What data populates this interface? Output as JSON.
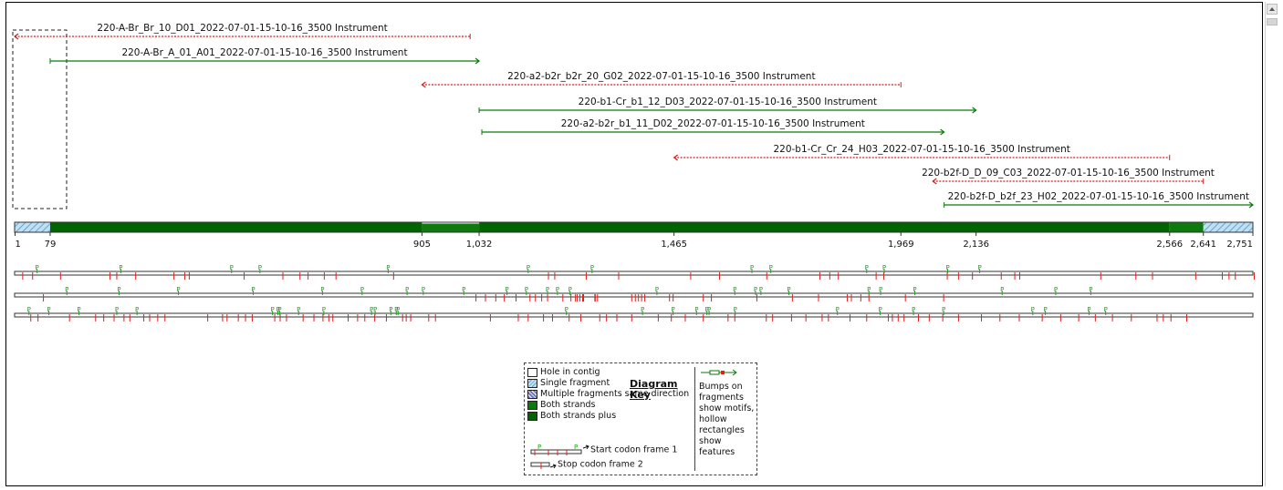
{
  "fragments": [
    {
      "label": "220-A-Br_Br_10_D01_2022-07-01-15-10-16_3500 Instrument",
      "start": 0,
      "end": 1012,
      "direction": "reverse",
      "color": "#d42020",
      "style": "dashed"
    },
    {
      "label": "220-A-Br_A_01_A01_2022-07-01-15-10-16_3500 Instrument",
      "start": 79,
      "end": 1032,
      "direction": "forward",
      "color": "#0a7a0a",
      "style": "solid"
    },
    {
      "label": "220-a2-b2r_b2r_20_G02_2022-07-01-15-10-16_3500 Instrument",
      "start": 905,
      "end": 1969,
      "direction": "reverse",
      "color": "#d42020",
      "style": "dashed"
    },
    {
      "label": "220-b1-Cr_b1_12_D03_2022-07-01-15-10-16_3500 Instrument",
      "start": 1032,
      "end": 2136,
      "direction": "forward",
      "color": "#0a7a0a",
      "style": "solid"
    },
    {
      "label": "220-a2-b2r_b1_11_D02_2022-07-01-15-10-16_3500 Instrument",
      "start": 1038,
      "end": 2065,
      "direction": "forward",
      "color": "#0a7a0a",
      "style": "solid"
    },
    {
      "label": "220-b1-Cr_Cr_24_H03_2022-07-01-15-10-16_3500 Instrument",
      "start": 1465,
      "end": 2566,
      "direction": "reverse",
      "color": "#d42020",
      "style": "dashed"
    },
    {
      "label": "220-b2f-D_D_09_C03_2022-07-01-15-10-16_3500 Instrument",
      "start": 2040,
      "end": 2641,
      "direction": "reverse",
      "color": "#d42020",
      "style": "dashed"
    },
    {
      "label": "220-b2f-D_b2f_23_H02_2022-07-01-15-10-16_3500 Instrument",
      "start": 2065,
      "end": 2751,
      "direction": "forward",
      "color": "#0a7a0a",
      "style": "solid"
    }
  ],
  "contig": {
    "length": 2751,
    "segments": [
      {
        "type": "single",
        "start": 0,
        "end": 79
      },
      {
        "type": "both_plus",
        "start": 79,
        "end": 905
      },
      {
        "type": "both",
        "start": 905,
        "end": 1032
      },
      {
        "type": "both_plus",
        "start": 1032,
        "end": 2566
      },
      {
        "type": "both",
        "start": 2566,
        "end": 2641
      },
      {
        "type": "single",
        "start": 2641,
        "end": 2751
      }
    ]
  },
  "ticks": [
    "1",
    "79",
    "905",
    "1,032",
    "1,465",
    "1,969",
    "2,136",
    "2,566",
    "2,641",
    "2,751"
  ],
  "frames": [
    {
      "starts": [
        50,
        236,
        482,
        545,
        830,
        1141,
        1283,
        1638,
        1680,
        1893,
        1932,
        2073,
        2144
      ],
      "stops": [
        18,
        40,
        102,
        212,
        227,
        269,
        354,
        378,
        388,
        510,
        596,
        634,
        652,
        688,
        714,
        842,
        1186,
        1200,
        1270,
        1342,
        1502,
        1566,
        1671,
        1789,
        1811,
        1830,
        1914,
        1931,
        2072,
        2097,
        2128,
        2192,
        2222,
        2233,
        2413,
        2491,
        2528,
        2624,
        2683,
        2698,
        2712,
        2754
      ]
    },
    {
      "starts": [
        116,
        232,
        364,
        530,
        684,
        772,
        872,
        908,
        998,
        1094,
        1137,
        1184,
        1206,
        1234,
        1427,
        1600,
        1646,
        1658,
        1720,
        1898,
        1924,
        2000,
        2194,
        2313,
        2391
      ],
      "stops": [
        64,
        1025,
        1046,
        1069,
        1088,
        1114,
        1145,
        1157,
        1171,
        1184,
        1218,
        1236,
        1246,
        1264,
        1290,
        1530,
        1548,
        1649,
        1728,
        1786,
        1850,
        1859,
        1880,
        1898,
        1979,
        2064
      ],
      "stop_groups": [
        [
          1250,
          1256,
          1262
        ],
        [
          1289,
          1295
        ],
        [
          1371,
          1379,
          1386,
          1393,
          1400
        ],
        [
          1455,
          1463
        ]
      ]
    },
    {
      "starts": [
        32,
        76,
        143,
        227,
        272,
        573,
        585,
        589,
        631,
        687,
        793,
        801,
        836,
        848,
        852,
        1226,
        1395,
        1463,
        1515,
        1538,
        1543,
        1601,
        1828,
        1923,
        1997,
        2064,
        2262,
        2290,
        2387,
        2424
      ],
      "stops": [
        36,
        52,
        122,
        180,
        198,
        221,
        243,
        256,
        287,
        300,
        318,
        334,
        429,
        462,
        472,
        497,
        513,
        528,
        578,
        590,
        604,
        641,
        665,
        685,
        698,
        707,
        741,
        762,
        778,
        800,
        826,
        862,
        870,
        880,
        920,
        935,
        1057,
        1119,
        1141,
        1175,
        1195,
        1232,
        1258,
        1300,
        1315,
        1338,
        1371,
        1430,
        1459,
        1490,
        1530,
        1585,
        1600,
        1670,
        1684,
        1726,
        1758,
        1794,
        1808,
        1856,
        1893,
        1941,
        1950,
        1963,
        1976,
        2008,
        2032,
        2062,
        2097,
        2148,
        2189,
        2232,
        2283,
        2324,
        2364,
        2401,
        2439,
        2481,
        2538,
        2552,
        2569,
        2604
      ]
    }
  ],
  "legend": {
    "title": "Diagram Key",
    "items": [
      {
        "label": "Hole in contig",
        "swatch": "hole"
      },
      {
        "label": "Single fragment",
        "swatch": "single"
      },
      {
        "label": "Multiple fragments same direction",
        "swatch": "multi"
      },
      {
        "label": "Both strands",
        "swatch": "both"
      },
      {
        "label": "Both strands plus",
        "swatch": "plus"
      }
    ],
    "start_codon": "Start codon frame 1",
    "stop_codon": "Stop codon frame 2",
    "bumps_text": [
      "Bumps on",
      "fragments",
      "show motifs,",
      "hollow",
      "rectangles",
      "show features"
    ],
    "motif_marker": "P"
  },
  "colors": {
    "forward": "#0a7a0a",
    "reverse": "#d42020",
    "start": "#1aa51a",
    "stop": "#e02020",
    "contig_fill": "#006400"
  }
}
